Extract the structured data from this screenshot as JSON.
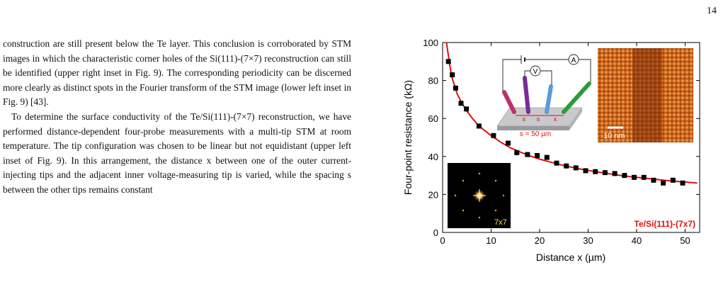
{
  "page_number": "14",
  "paragraphs": [
    "construction are still present below the Te layer. This conclusion is corroborated by STM images in which the characteristic corner holes of the Si(111)-(7×7) reconstruction can still be identified (upper right inset in Fig. 9). The corresponding periodicity can be discerned more clearly as distinct spots in the Fourier transform of the STM image (lower left inset in Fig. 9) [43].",
    "To determine the surface conductivity of the Te/Si(111)-(7×7) reconstruction, we have performed distance-dependent four-probe measurements with a multi-tip STM at room temperature. The tip configuration was chosen to be linear but not equidistant (upper left inset of Fig. 9). In this arrangement, the distance x between one of the outer current-injecting tips and the adjacent inner voltage-measuring tip is varied, while the spacing s between the other tips remains constant"
  ],
  "figure": {
    "colors": {
      "fit": "#e01010",
      "label": "#e01010",
      "points": "#000000"
    },
    "inset_stm": {
      "scale_label": "10 nm"
    },
    "inset_fft": {
      "label": "7x7"
    },
    "inset_setup": {
      "spacing_label": "s = 50 µm",
      "s_label": "s",
      "x_label": "x",
      "ammeter": "A",
      "voltmeter": "V"
    }
  },
  "chart_data": {
    "type": "scatter",
    "xlabel": "Distance x (µm)",
    "ylabel": "Four-point resistance (kΩ)",
    "xlim": [
      0,
      53
    ],
    "ylim": [
      0,
      100
    ],
    "xticks": [
      0,
      10,
      20,
      30,
      40,
      50
    ],
    "yticks": [
      0,
      20,
      40,
      60,
      80,
      100
    ],
    "series_label": "Te/Si(111)-(7x7)",
    "grid": false,
    "series": [
      {
        "x": [
          1.2,
          2.0,
          2.7,
          3.8,
          4.9,
          7.5,
          10.5,
          13.5,
          15.3,
          17.5,
          19.5,
          21.5,
          23.5,
          25.5,
          27.5,
          29.5,
          31.5,
          33.5,
          35.5,
          37.5,
          39.5,
          41.5,
          43.5,
          45.5,
          47.5,
          49.5
        ],
        "y": [
          90,
          83,
          76,
          68,
          65,
          56,
          51,
          47,
          42,
          41,
          40.5,
          39.5,
          36.5,
          35,
          34,
          32.5,
          32,
          31.5,
          31,
          30,
          29,
          29,
          27.5,
          26,
          27.5,
          26
        ]
      }
    ],
    "fit": {
      "x": [
        0.8,
        1.2,
        1.6,
        2,
        3,
        4,
        5,
        6,
        7,
        8,
        10,
        12,
        14,
        16,
        18,
        20,
        22,
        25,
        28,
        31,
        34,
        37,
        40,
        43,
        46,
        49,
        52.5
      ],
      "y": [
        100,
        93,
        86,
        81,
        73,
        68,
        64,
        60.5,
        57.5,
        55,
        51,
        47.5,
        44.5,
        42.3,
        40.3,
        38.6,
        37.2,
        35.2,
        33.6,
        32.2,
        31,
        29.9,
        29,
        28.2,
        27.4,
        26.7,
        26
      ]
    }
  }
}
